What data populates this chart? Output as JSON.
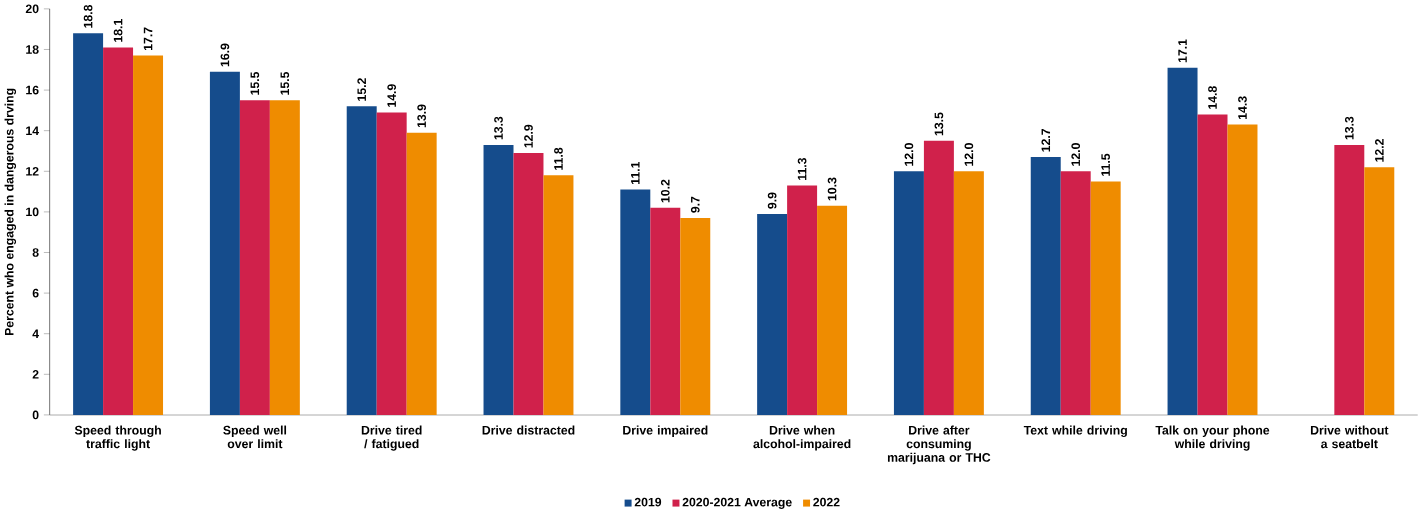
{
  "chart_data": {
    "type": "bar",
    "ylabel": "Percent who engaged in dangerous drving",
    "categories": [
      "Speed through traffic light",
      "Speed well over limit",
      "Drive tired / fatigued",
      "Drive distracted",
      "Drive impaired",
      "Drive when alcohol-impaired",
      "Drive after consuming marijuana or THC",
      "Text while driving",
      "Talk on your phone while driving",
      "Drive without a seatbelt"
    ],
    "series": [
      {
        "name": "2019",
        "color": "#154c8c",
        "values": [
          18.8,
          16.9,
          15.2,
          13.3,
          11.1,
          9.9,
          12.0,
          12.7,
          17.1,
          null
        ],
        "value_labels": [
          "18.8",
          "16.9",
          "15.2",
          "13.3",
          "11.1",
          "9.9",
          "12.0",
          "12.7",
          "17.1",
          null
        ]
      },
      {
        "name": "2020-2021 Average",
        "color": "#d0214b",
        "values": [
          18.1,
          15.5,
          14.9,
          12.9,
          10.2,
          11.3,
          13.5,
          12.0,
          14.8,
          13.3
        ],
        "value_labels": [
          "18.1",
          "15.5",
          "14.9",
          "12.9",
          "10.2",
          "11.3",
          "13.5",
          "12.0",
          "14.8",
          "13.3"
        ]
      },
      {
        "name": "2022",
        "color": "#ef8c00",
        "values": [
          17.7,
          15.5,
          13.9,
          11.8,
          9.7,
          10.3,
          12.0,
          11.5,
          14.3,
          12.2
        ],
        "value_labels": [
          "17.7",
          "15.5",
          "13.9",
          "11.8",
          "9.7",
          "10.3",
          "12.0",
          "11.5",
          "14.3",
          "12.2"
        ]
      }
    ],
    "ylim": [
      0,
      20
    ],
    "yticks": [
      0,
      2,
      4,
      6,
      8,
      10,
      12,
      14,
      16,
      18,
      20
    ],
    "legend": "bottom"
  }
}
